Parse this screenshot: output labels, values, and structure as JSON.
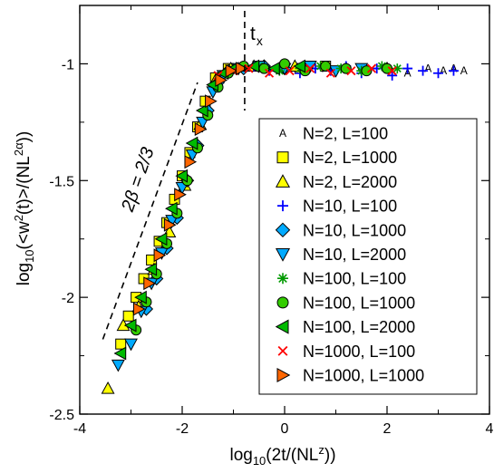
{
  "chart_data": {
    "type": "scatter",
    "xlabel": "log10(2t/(NL^z))",
    "ylabel": "log10(<w^2(t)>/(NL^2α))",
    "xlim": [
      -4,
      4
    ],
    "ylim": [
      -2.5,
      -0.75
    ],
    "x_ticks": [
      -4,
      -2,
      0,
      2,
      4
    ],
    "y_ticks": [
      -2.5,
      -2,
      -1.5,
      -1
    ],
    "x_tick_labels": [
      "-4",
      "-2",
      "0",
      "2",
      "4"
    ],
    "y_tick_labels": [
      "-2.5",
      "-2",
      "-1.5",
      "-1"
    ],
    "annotations": {
      "slope_label": "2β = 2/3",
      "crossover_label": "t",
      "crossover_subscript": "x",
      "crossover_x": -0.78
    },
    "guide_line": {
      "x": [
        -3.55,
        -1.7
      ],
      "y": [
        -2.18,
        -1.08
      ]
    },
    "legend_position": "right-middle",
    "series": [
      {
        "name": "N=2, L=100",
        "marker": "A",
        "color": "#000000",
        "x": [
          0.8,
          1.2,
          1.6,
          2.0,
          2.4,
          2.8,
          3.1,
          3.3,
          3.5
        ],
        "y": [
          -1.02,
          -1.01,
          -1.03,
          -1.01,
          -1.04,
          -1.02,
          -1.03,
          -1.02,
          -1.03
        ]
      },
      {
        "name": "N=2, L=1000",
        "marker": "square",
        "color": "#ffff00",
        "x": [
          -3.2,
          -3.05,
          -2.9,
          -2.75,
          -2.6,
          -2.45,
          -2.3,
          -2.15,
          -2.0,
          -1.85,
          -1.7,
          -1.55,
          -1.35,
          -1.1,
          -0.5,
          0.3,
          0.8
        ],
        "y": [
          -2.2,
          -2.08,
          -2.0,
          -1.92,
          -1.84,
          -1.76,
          -1.68,
          -1.58,
          -1.48,
          -1.38,
          -1.27,
          -1.16,
          -1.06,
          -1.02,
          -1.01,
          -1.02,
          -1.01
        ]
      },
      {
        "name": "N=2, L=2000",
        "marker": "triangle-up",
        "color": "#ffff00",
        "x": [
          -3.45,
          -3.15,
          -2.85,
          -2.55,
          -2.25,
          -1.95,
          -1.65,
          -1.35,
          -1.05,
          -0.6,
          0.2
        ],
        "y": [
          -2.39,
          -2.12,
          -2.04,
          -1.88,
          -1.72,
          -1.52,
          -1.26,
          -1.07,
          -1.02,
          -1.01,
          -1.01
        ]
      },
      {
        "name": "N=10, L=100",
        "marker": "plus",
        "color": "#0000ff",
        "x": [
          -0.6,
          -0.3,
          0.0,
          0.3,
          0.6,
          0.9,
          1.2,
          1.5,
          1.8,
          2.1,
          2.4,
          2.7,
          3.0,
          3.3
        ],
        "y": [
          -1.01,
          -1.03,
          -1.0,
          -1.04,
          -1.02,
          -1.03,
          -1.01,
          -1.04,
          -1.02,
          -1.05,
          -1.02,
          -1.03,
          -1.04,
          -1.03
        ]
      },
      {
        "name": "N=10, L=1000",
        "marker": "diamond",
        "color": "#00aaff",
        "x": [
          -2.7,
          -2.5,
          -2.3,
          -2.1,
          -1.9,
          -1.7,
          -1.5,
          -1.3,
          -1.1,
          -0.8,
          -0.4,
          0.0,
          0.4
        ],
        "y": [
          -2.05,
          -1.92,
          -1.79,
          -1.66,
          -1.5,
          -1.35,
          -1.2,
          -1.08,
          -1.03,
          -1.02,
          -1.01,
          -1.02,
          -1.02
        ]
      },
      {
        "name": "N=10, L=2000",
        "marker": "triangle-down",
        "color": "#00aaff",
        "x": [
          -3.25,
          -3.0,
          -2.8,
          -2.6,
          -2.4,
          -2.2,
          -2.0,
          -1.8,
          -1.6,
          -1.4,
          -1.2,
          -0.9,
          -0.5,
          0.0,
          0.5,
          1.0,
          1.5
        ],
        "y": [
          -2.29,
          -2.2,
          -2.06,
          -1.94,
          -1.81,
          -1.67,
          -1.53,
          -1.39,
          -1.25,
          -1.12,
          -1.05,
          -1.02,
          -1.01,
          -1.02,
          -1.01,
          -1.03,
          -1.02
        ]
      },
      {
        "name": "N=100, L=100",
        "marker": "star",
        "color": "#009900",
        "x": [
          -0.9,
          -0.5,
          -0.1,
          0.3,
          0.7,
          1.1,
          1.5,
          1.9,
          2.2
        ],
        "y": [
          -1.02,
          -1.01,
          -1.03,
          -1.02,
          -1.01,
          -1.02,
          -1.03,
          -1.01,
          -1.02
        ]
      },
      {
        "name": "N=100, L=1000",
        "marker": "circle",
        "color": "#33cc00",
        "x": [
          -2.9,
          -2.7,
          -2.5,
          -2.3,
          -2.1,
          -1.9,
          -1.7,
          -1.5,
          -1.3,
          -1.1,
          -0.8,
          -0.4,
          0.0,
          0.4,
          0.8,
          1.2,
          1.6,
          2.0
        ],
        "y": [
          -2.14,
          -2.02,
          -1.9,
          -1.77,
          -1.64,
          -1.5,
          -1.36,
          -1.22,
          -1.1,
          -1.04,
          -1.01,
          -1.02,
          -1.0,
          -1.03,
          -1.01,
          -1.02,
          -1.03,
          -1.02
        ]
      },
      {
        "name": "N=100, L=2000",
        "marker": "triangle-left",
        "color": "#00bb00",
        "x": [
          -3.2,
          -3.0,
          -2.8,
          -2.6,
          -2.4,
          -2.2,
          -2.0,
          -1.8,
          -1.6,
          -1.4,
          -1.2,
          -1.0,
          -0.6,
          -0.2,
          0.3
        ],
        "y": [
          -2.24,
          -2.12,
          -2.0,
          -1.88,
          -1.75,
          -1.62,
          -1.48,
          -1.34,
          -1.2,
          -1.09,
          -1.04,
          -1.02,
          -1.01,
          -1.02,
          -1.01
        ]
      },
      {
        "name": "N=1000, L=100",
        "marker": "cross",
        "color": "#ff0000",
        "x": [
          -1.3,
          -1.0,
          -0.7,
          -0.3,
          0.1,
          0.5,
          0.9,
          1.3,
          1.7,
          2.1
        ],
        "y": [
          -1.05,
          -1.03,
          -1.02,
          -1.04,
          -1.03,
          -1.02,
          -1.04,
          -1.03,
          -1.02,
          -1.03
        ]
      },
      {
        "name": "N=1000, L=1000",
        "marker": "triangle-right",
        "color": "#ff6600",
        "x": [
          -2.85,
          -2.65,
          -2.45,
          -2.25,
          -2.05,
          -1.85,
          -1.65,
          -1.45,
          -1.25,
          -1.05,
          -0.85
        ],
        "y": [
          -2.05,
          -1.94,
          -1.82,
          -1.69,
          -1.56,
          -1.42,
          -1.28,
          -1.16,
          -1.07,
          -1.03,
          -1.02
        ]
      }
    ]
  }
}
